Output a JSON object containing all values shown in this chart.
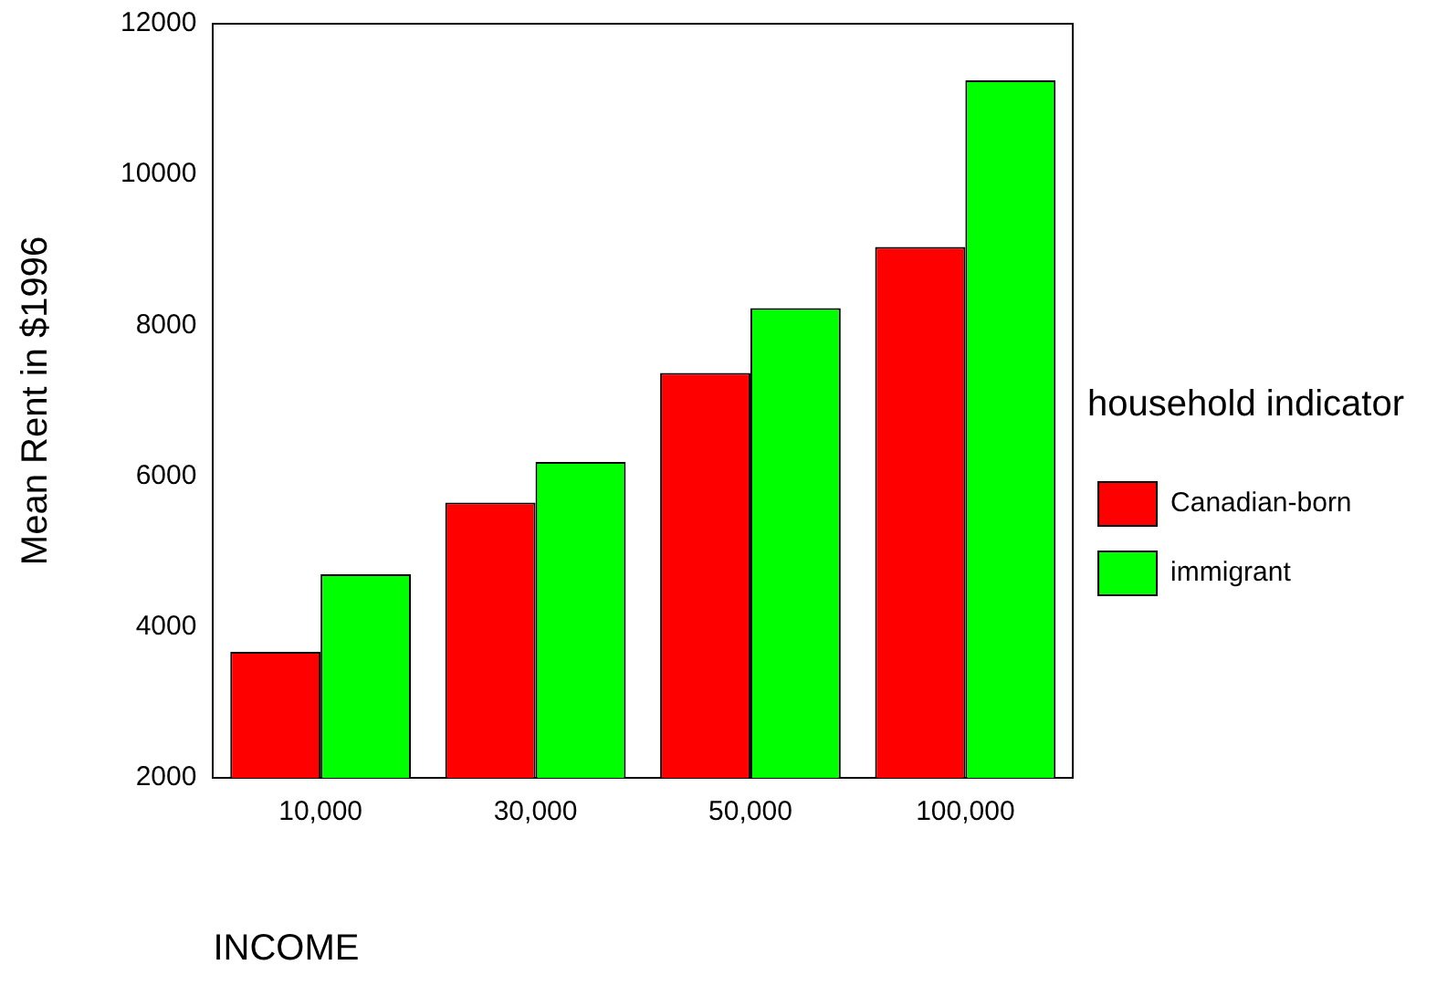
{
  "chart_data": {
    "type": "bar",
    "xlabel": "INCOME",
    "ylabel": "Mean Rent in $1996",
    "legend_title": "household indicator",
    "categories": [
      "10,000",
      "30,000",
      "50,000",
      "100,000"
    ],
    "series": [
      {
        "name": "Canadian-born",
        "color": "#ff0000",
        "values": [
          3670,
          5650,
          7370,
          9040
        ]
      },
      {
        "name": "immigrant",
        "color": "#00ff00",
        "values": [
          4700,
          6190,
          8230,
          11250
        ]
      }
    ],
    "ylim": [
      2000,
      12000
    ],
    "yticks": [
      2000,
      4000,
      6000,
      8000,
      10000,
      12000
    ],
    "grid": false,
    "legend": "right"
  }
}
